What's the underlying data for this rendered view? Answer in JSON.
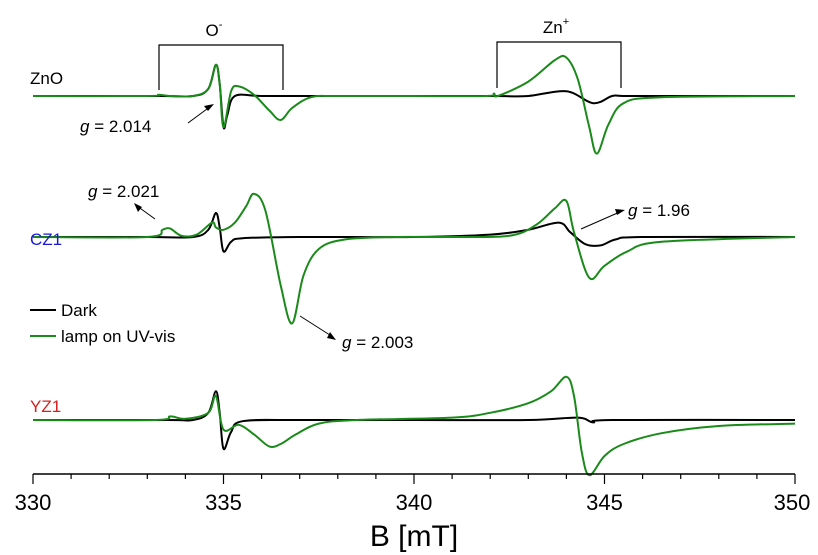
{
  "chart_data": {
    "type": "line",
    "xlabel": "B [mT]",
    "xlim": [
      330,
      350
    ],
    "x_ticks": [
      "330",
      "335",
      "340",
      "345",
      "350"
    ],
    "legend": {
      "placement": "center-left",
      "entries": [
        {
          "label": "Dark",
          "color": "#000000"
        },
        {
          "label": "lamp on UV-vis",
          "color": "#1a8a1a"
        }
      ]
    },
    "samples": [
      {
        "name": "ZnO",
        "label_color": "#000000",
        "series": [
          {
            "legend_ref": "Dark",
            "color": "#000000",
            "x": [
              330,
              333.3,
              334.2,
              334.6,
              334.8,
              334.9,
              335.0,
              335.1,
              335.3,
              336.0,
              337.5,
              340,
              341.9,
              342.2,
              343.0,
              344.0,
              344.7,
              345.2,
              345.5,
              346.5,
              350
            ],
            "y": [
              0,
              0,
              0,
              0.3,
              1.3,
              0.5,
              -1.3,
              -0.8,
              0,
              0,
              0,
              0,
              0,
              0,
              0,
              0.2,
              -0.3,
              0,
              0,
              0,
              0
            ]
          },
          {
            "legend_ref": "lamp on UV-vis",
            "color": "#1a8a1a",
            "x": [
              330,
              333.0,
              333.3,
              333.6,
              334.2,
              334.6,
              334.8,
              334.9,
              335.0,
              335.2,
              335.4,
              335.8,
              336.2,
              336.5,
              336.8,
              337.3,
              338,
              340,
              341.9,
              342.1,
              342.2,
              343.0,
              343.7,
              344.0,
              344.3,
              344.6,
              344.8,
              345.1,
              345.5,
              346.5,
              350
            ],
            "y": [
              0,
              0,
              0.05,
              0,
              0,
              0.3,
              1.3,
              0.5,
              -1.3,
              0.2,
              0.4,
              0.05,
              -0.6,
              -1.0,
              -0.5,
              -0.05,
              0,
              0,
              0,
              0.1,
              0,
              0.6,
              1.5,
              1.6,
              0.7,
              -1.3,
              -2.4,
              -1.2,
              -0.3,
              -0.05,
              0
            ]
          }
        ]
      },
      {
        "name": "CZ1",
        "label_color": "#1a1ad6",
        "series": [
          {
            "legend_ref": "Dark",
            "color": "#000000",
            "x": [
              330,
              333.0,
              334.2,
              334.6,
              334.8,
              334.9,
              335.0,
              335.2,
              335.5,
              337,
              340,
              342.0,
              343.0,
              343.8,
              344.1,
              344.5,
              344.9,
              345.3,
              346.0,
              350
            ],
            "y": [
              0,
              0,
              0,
              0.3,
              1.0,
              0.4,
              -0.6,
              -0.2,
              -0.05,
              0,
              0,
              0.1,
              0.3,
              0.6,
              0.2,
              -0.3,
              -0.35,
              -0.1,
              0,
              0
            ],
            "annotation": {
              "text_italic": "g",
              "text": " = 1.96"
            }
          },
          {
            "legend_ref": "lamp on UV-vis",
            "color": "#1a8a1a",
            "x": [
              330,
              333.0,
              333.4,
              333.6,
              333.9,
              334.3,
              334.7,
              334.8,
              335.0,
              335.3,
              335.6,
              335.8,
              336.1,
              336.5,
              336.8,
              337.1,
              337.5,
              338.2,
              339.5,
              341,
              342.5,
              343.2,
              343.7,
              344.0,
              344.2,
              344.6,
              345.0,
              345.6,
              346.5,
              350
            ],
            "y": [
              0,
              0,
              0.3,
              0.35,
              0.05,
              0.1,
              0.6,
              0.4,
              0.3,
              0.6,
              1.3,
              1.8,
              1.1,
              -2.0,
              -3.6,
              -1.6,
              -0.5,
              -0.1,
              0,
              0,
              0.05,
              0.5,
              1.2,
              1.5,
              0.2,
              -1.7,
              -1.2,
              -0.6,
              -0.2,
              0
            ],
            "annotations": [
              {
                "text_italic": "g",
                "text": " = 2.021"
              },
              {
                "text_italic": "g",
                "text": " = 2.003"
              }
            ]
          }
        ]
      },
      {
        "name": "YZ1",
        "label_color": "#d62020",
        "series": [
          {
            "legend_ref": "Dark",
            "color": "#000000",
            "x": [
              330,
              333.5,
              334.2,
              334.6,
              334.8,
              334.9,
              335.0,
              335.2,
              335.5,
              337,
              340,
              343,
              344.3,
              344.7,
              345.2,
              350
            ],
            "y": [
              0,
              0,
              0,
              0.3,
              1.2,
              0.3,
              -1.2,
              -0.5,
              -0.05,
              0,
              0,
              0,
              0.1,
              -0.1,
              0,
              0
            ],
            "annotation": {
              "text_italic": "g",
              "text": " = 2.014"
            }
          },
          {
            "legend_ref": "lamp on UV-vis",
            "color": "#1a8a1a",
            "x": [
              330,
              333.2,
              333.6,
              334.0,
              334.6,
              334.8,
              335.0,
              335.4,
              335.8,
              336.2,
              336.5,
              336.9,
              337.5,
              338.5,
              341.0,
              342.0,
              343.0,
              343.6,
              344.0,
              344.2,
              344.4,
              344.6,
              345.0,
              345.5,
              346.5,
              348,
              350
            ],
            "y": [
              0,
              0,
              0.15,
              0.05,
              0.3,
              1.0,
              -0.4,
              -0.2,
              -0.6,
              -1.1,
              -1.0,
              -0.6,
              -0.15,
              0,
              0.1,
              0.3,
              0.7,
              1.2,
              1.8,
              1.0,
              -1.3,
              -2.3,
              -1.5,
              -1.0,
              -0.55,
              -0.25,
              -0.15
            ]
          }
        ]
      }
    ],
    "brackets": [
      {
        "label": "O",
        "label_sup": "-",
        "x_start": 333.3,
        "x_end": 336.6
      },
      {
        "label": "Zn",
        "label_sup": "+",
        "x_start": 342.1,
        "x_end": 345.4
      }
    ]
  }
}
